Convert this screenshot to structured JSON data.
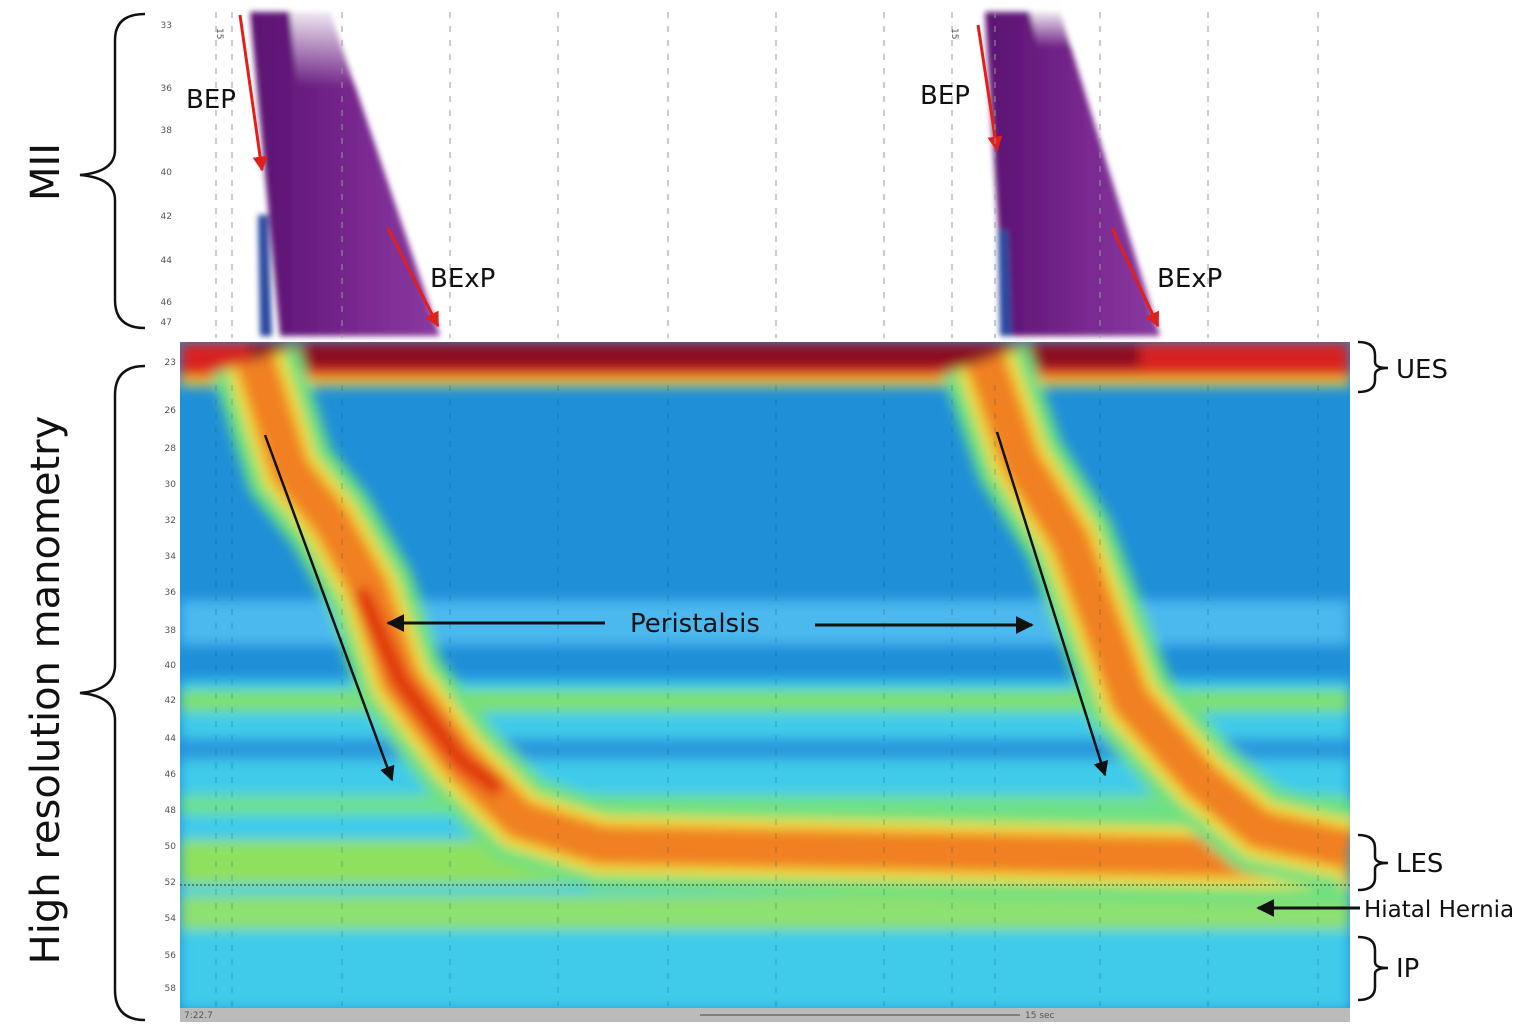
{
  "left_labels": {
    "mii": "MII",
    "hrm": "High resolution manometry"
  },
  "mii_panel": {
    "ticks": [
      "33",
      "36",
      "38",
      "40",
      "42",
      "44",
      "46",
      "47"
    ],
    "markers": [
      "15",
      "15"
    ],
    "annotations": [
      "BEP",
      "BExP",
      "BEP",
      "BExP"
    ]
  },
  "hrm_panel": {
    "ticks": [
      "23",
      "26",
      "28",
      "30",
      "32",
      "34",
      "36",
      "38",
      "40",
      "42",
      "44",
      "46",
      "48",
      "50",
      "52",
      "54",
      "56",
      "58"
    ],
    "annotation": "Peristalsis",
    "time_start": "7:22.7",
    "time_scale": "15 sec"
  },
  "right_labels": [
    "UES",
    "LES",
    "Hiatal Hernia",
    "IP"
  ]
}
